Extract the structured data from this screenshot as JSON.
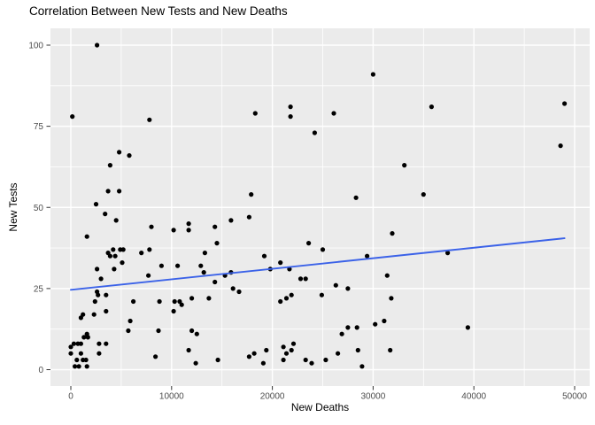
{
  "title": "Correlation Between New Tests and New Deaths",
  "chart_data": {
    "type": "scatter",
    "title": "Correlation Between New Tests and New Deaths",
    "xlabel": "New Deaths",
    "ylabel": "New Tests",
    "xlim": [
      -2000,
      51600
    ],
    "ylim": [
      -5,
      105
    ],
    "grid": "on",
    "legend": "none",
    "x_ticks": [
      0,
      10000,
      20000,
      30000,
      40000,
      50000
    ],
    "x_tick_labels": [
      "0",
      "10000",
      "20000",
      "30000",
      "40000",
      "50000"
    ],
    "x_minor_ticks": [
      5000,
      15000,
      25000,
      35000,
      45000
    ],
    "y_ticks": [
      0,
      25,
      50,
      75,
      100
    ],
    "y_tick_labels": [
      "0",
      "25",
      "50",
      "75",
      "100"
    ],
    "y_minor_ticks": [
      12.5,
      37.5,
      62.5,
      87.5
    ],
    "trend_line": {
      "x1": 0,
      "y1": 24.6,
      "x2": 49000,
      "y2": 40.5
    },
    "colors": {
      "panel_bg": "#EBEBEB",
      "grid": "#FFFFFF",
      "point": "#000000",
      "trend": "#3B62E8",
      "tick_label": "#4D4D4D",
      "tick_mark": "#333333",
      "title": "#000000"
    },
    "points": [
      [
        2600,
        100
      ],
      [
        150,
        78
      ],
      [
        7800,
        77
      ],
      [
        30000,
        91
      ],
      [
        18300,
        79
      ],
      [
        21800,
        81
      ],
      [
        21800,
        78
      ],
      [
        26100,
        79
      ],
      [
        24200,
        73
      ],
      [
        35800,
        81
      ],
      [
        49000,
        82
      ],
      [
        48600,
        69
      ],
      [
        4800,
        67
      ],
      [
        5800,
        66
      ],
      [
        3900,
        63
      ],
      [
        33100,
        63
      ],
      [
        3700,
        55
      ],
      [
        4800,
        55
      ],
      [
        2500,
        51
      ],
      [
        17900,
        54
      ],
      [
        28300,
        53
      ],
      [
        35000,
        54
      ],
      [
        3400,
        48
      ],
      [
        4500,
        46
      ],
      [
        8000,
        44
      ],
      [
        10200,
        43
      ],
      [
        11700,
        45
      ],
      [
        11700,
        43
      ],
      [
        14300,
        44
      ],
      [
        1600,
        41
      ],
      [
        15900,
        46
      ],
      [
        17700,
        47
      ],
      [
        14500,
        39
      ],
      [
        23600,
        39
      ],
      [
        31900,
        42
      ],
      [
        4200,
        37
      ],
      [
        4900,
        37
      ],
      [
        5200,
        37
      ],
      [
        3700,
        36
      ],
      [
        3900,
        35
      ],
      [
        4400,
        35
      ],
      [
        7000,
        36
      ],
      [
        7800,
        37
      ],
      [
        13300,
        36
      ],
      [
        19200,
        35
      ],
      [
        25000,
        37
      ],
      [
        29400,
        35
      ],
      [
        37400,
        36
      ],
      [
        20800,
        33
      ],
      [
        5100,
        33
      ],
      [
        2600,
        31
      ],
      [
        4300,
        31
      ],
      [
        3000,
        28
      ],
      [
        9000,
        32
      ],
      [
        10600,
        32
      ],
      [
        12900,
        32
      ],
      [
        13200,
        30
      ],
      [
        7700,
        29
      ],
      [
        14300,
        27
      ],
      [
        15300,
        29
      ],
      [
        15900,
        30
      ],
      [
        19800,
        31
      ],
      [
        21700,
        31
      ],
      [
        22800,
        28
      ],
      [
        23300,
        28
      ],
      [
        31400,
        29
      ],
      [
        16100,
        25
      ],
      [
        16700,
        24
      ],
      [
        26300,
        26
      ],
      [
        27500,
        25
      ],
      [
        24900,
        23
      ],
      [
        2600,
        24
      ],
      [
        2700,
        23
      ],
      [
        3500,
        23
      ],
      [
        2400,
        21
      ],
      [
        6200,
        21
      ],
      [
        8800,
        21
      ],
      [
        10300,
        21
      ],
      [
        10800,
        21
      ],
      [
        11000,
        20
      ],
      [
        12000,
        22
      ],
      [
        13700,
        22
      ],
      [
        20800,
        21
      ],
      [
        21400,
        22
      ],
      [
        21900,
        23
      ],
      [
        31800,
        22
      ],
      [
        1000,
        16
      ],
      [
        1200,
        17
      ],
      [
        2300,
        17
      ],
      [
        3500,
        18
      ],
      [
        10200,
        18
      ],
      [
        5900,
        15
      ],
      [
        30200,
        14
      ],
      [
        31100,
        15
      ],
      [
        27500,
        13
      ],
      [
        28400,
        13
      ],
      [
        39400,
        13
      ],
      [
        5700,
        12
      ],
      [
        8700,
        12
      ],
      [
        12000,
        12
      ],
      [
        12500,
        11
      ],
      [
        1600,
        11
      ],
      [
        1700,
        10
      ],
      [
        1300,
        10
      ],
      [
        26900,
        11
      ],
      [
        300,
        8
      ],
      [
        700,
        8
      ],
      [
        1000,
        8
      ],
      [
        0,
        7
      ],
      [
        2800,
        8
      ],
      [
        3500,
        8
      ],
      [
        21100,
        7
      ],
      [
        22100,
        8
      ],
      [
        0,
        5
      ],
      [
        1000,
        5
      ],
      [
        2800,
        5
      ],
      [
        8400,
        4
      ],
      [
        11700,
        6
      ],
      [
        19400,
        6
      ],
      [
        18200,
        5
      ],
      [
        17700,
        4
      ],
      [
        21400,
        5
      ],
      [
        21900,
        6
      ],
      [
        26500,
        5
      ],
      [
        28500,
        6
      ],
      [
        31700,
        6
      ],
      [
        600,
        3
      ],
      [
        1200,
        3
      ],
      [
        1500,
        3
      ],
      [
        800,
        1
      ],
      [
        1600,
        1
      ],
      [
        400,
        1
      ],
      [
        12400,
        2
      ],
      [
        14600,
        3
      ],
      [
        19100,
        2
      ],
      [
        21100,
        3
      ],
      [
        23300,
        3
      ],
      [
        23900,
        2
      ],
      [
        25300,
        3
      ],
      [
        28900,
        1
      ]
    ]
  }
}
